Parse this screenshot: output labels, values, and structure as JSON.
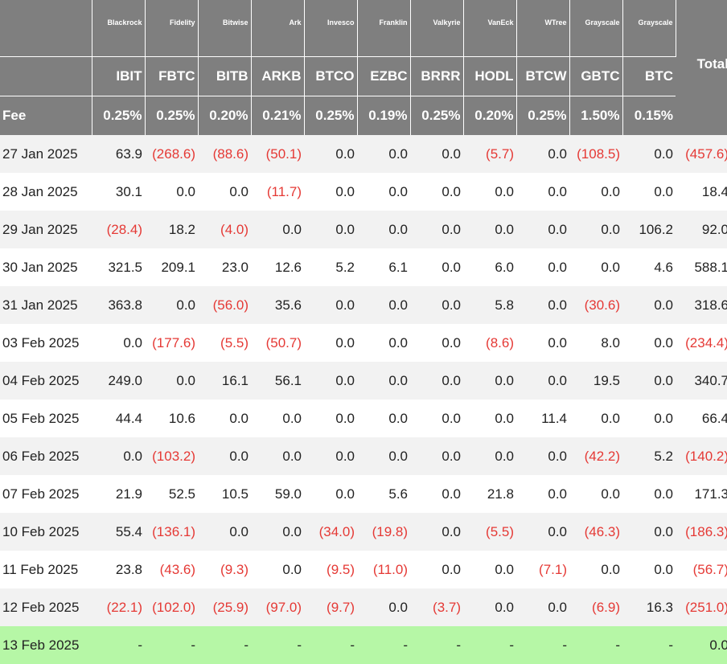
{
  "headers": {
    "issuers": [
      "Blackrock",
      "Fidelity",
      "Bitwise",
      "Ark",
      "Invesco",
      "Franklin",
      "Valkyrie",
      "VanEck",
      "WTree",
      "Grayscale",
      "Grayscale"
    ],
    "tickers": [
      "IBIT",
      "FBTC",
      "BITB",
      "ARKB",
      "BTCO",
      "EZBC",
      "BRRR",
      "HODL",
      "BTCW",
      "GBTC",
      "BTC"
    ],
    "fee_label": "Fee",
    "fees": [
      "0.25%",
      "0.25%",
      "0.20%",
      "0.21%",
      "0.25%",
      "0.19%",
      "0.25%",
      "0.20%",
      "0.25%",
      "1.50%",
      "0.15%"
    ],
    "total_label": "Total"
  },
  "colors": {
    "header_bg": "#7f7f7f",
    "negative": "#e53935",
    "pending_row": "#b6f7a6",
    "stripe": "#f2f2f2"
  },
  "rows": [
    {
      "date": "27 Jan 2025",
      "values": [
        "63.9",
        "(268.6)",
        "(88.6)",
        "(50.1)",
        "0.0",
        "0.0",
        "0.0",
        "(5.7)",
        "0.0",
        "(108.5)",
        "0.0"
      ],
      "total": "(457.6)"
    },
    {
      "date": "28 Jan 2025",
      "values": [
        "30.1",
        "0.0",
        "0.0",
        "(11.7)",
        "0.0",
        "0.0",
        "0.0",
        "0.0",
        "0.0",
        "0.0",
        "0.0"
      ],
      "total": "18.4"
    },
    {
      "date": "29 Jan 2025",
      "values": [
        "(28.4)",
        "18.2",
        "(4.0)",
        "0.0",
        "0.0",
        "0.0",
        "0.0",
        "0.0",
        "0.0",
        "0.0",
        "106.2"
      ],
      "total": "92.0"
    },
    {
      "date": "30 Jan 2025",
      "values": [
        "321.5",
        "209.1",
        "23.0",
        "12.6",
        "5.2",
        "6.1",
        "0.0",
        "6.0",
        "0.0",
        "0.0",
        "4.6"
      ],
      "total": "588.1"
    },
    {
      "date": "31 Jan 2025",
      "values": [
        "363.8",
        "0.0",
        "(56.0)",
        "35.6",
        "0.0",
        "0.0",
        "0.0",
        "5.8",
        "0.0",
        "(30.6)",
        "0.0"
      ],
      "total": "318.6"
    },
    {
      "date": "03 Feb 2025",
      "values": [
        "0.0",
        "(177.6)",
        "(5.5)",
        "(50.7)",
        "0.0",
        "0.0",
        "0.0",
        "(8.6)",
        "0.0",
        "8.0",
        "0.0"
      ],
      "total": "(234.4)"
    },
    {
      "date": "04 Feb 2025",
      "values": [
        "249.0",
        "0.0",
        "16.1",
        "56.1",
        "0.0",
        "0.0",
        "0.0",
        "0.0",
        "0.0",
        "19.5",
        "0.0"
      ],
      "total": "340.7"
    },
    {
      "date": "05 Feb 2025",
      "values": [
        "44.4",
        "10.6",
        "0.0",
        "0.0",
        "0.0",
        "0.0",
        "0.0",
        "0.0",
        "11.4",
        "0.0",
        "0.0"
      ],
      "total": "66.4"
    },
    {
      "date": "06 Feb 2025",
      "values": [
        "0.0",
        "(103.2)",
        "0.0",
        "0.0",
        "0.0",
        "0.0",
        "0.0",
        "0.0",
        "0.0",
        "(42.2)",
        "5.2"
      ],
      "total": "(140.2)"
    },
    {
      "date": "07 Feb 2025",
      "values": [
        "21.9",
        "52.5",
        "10.5",
        "59.0",
        "0.0",
        "5.6",
        "0.0",
        "21.8",
        "0.0",
        "0.0",
        "0.0"
      ],
      "total": "171.3"
    },
    {
      "date": "10 Feb 2025",
      "values": [
        "55.4",
        "(136.1)",
        "0.0",
        "0.0",
        "(34.0)",
        "(19.8)",
        "0.0",
        "(5.5)",
        "0.0",
        "(46.3)",
        "0.0"
      ],
      "total": "(186.3)"
    },
    {
      "date": "11 Feb 2025",
      "values": [
        "23.8",
        "(43.6)",
        "(9.3)",
        "0.0",
        "(9.5)",
        "(11.0)",
        "0.0",
        "0.0",
        "(7.1)",
        "0.0",
        "0.0"
      ],
      "total": "(56.7)"
    },
    {
      "date": "12 Feb 2025",
      "values": [
        "(22.1)",
        "(102.0)",
        "(25.9)",
        "(97.0)",
        "(9.7)",
        "0.0",
        "(3.7)",
        "0.0",
        "0.0",
        "(6.9)",
        "16.3"
      ],
      "total": "(251.0)"
    },
    {
      "date": "13 Feb 2025",
      "values": [
        "-",
        "-",
        "-",
        "-",
        "-",
        "-",
        "-",
        "-",
        "-",
        "-",
        "-"
      ],
      "total": "0.0",
      "pending": true
    }
  ]
}
